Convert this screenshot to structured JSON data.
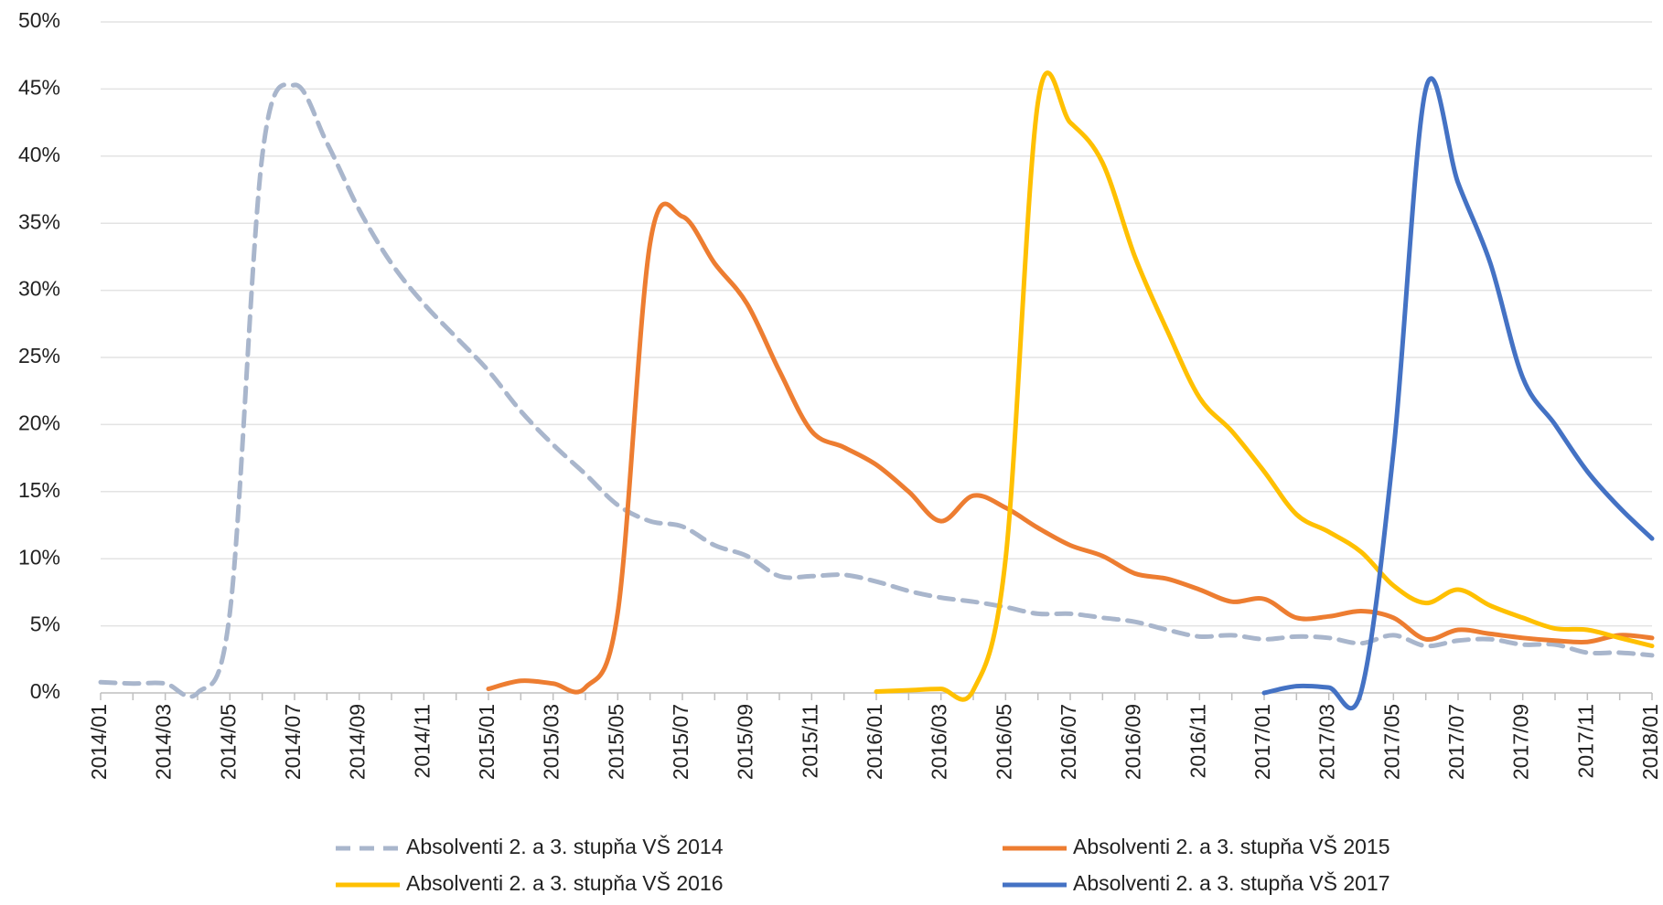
{
  "chart_data": {
    "type": "line",
    "categories": [
      "2014/01",
      null,
      "2014/03",
      null,
      "2014/05",
      null,
      "2014/07",
      null,
      "2014/09",
      null,
      "2014/11",
      null,
      "2015/01",
      null,
      "2015/03",
      null,
      "2015/05",
      null,
      "2015/07",
      null,
      "2015/09",
      null,
      "2015/11",
      null,
      "2016/01",
      null,
      "2016/03",
      null,
      "2016/05",
      null,
      "2016/07",
      null,
      "2016/09",
      null,
      "2016/11",
      null,
      "2017/01",
      null,
      "2017/03",
      null,
      "2017/05",
      null,
      "2017/07",
      null,
      "2017/09",
      null,
      "2017/11",
      null,
      "2018/01"
    ],
    "series": [
      {
        "name": "Absolventi 2. a 3. stupňa VŠ 2014",
        "color": "#a9b6cc",
        "dashed": true,
        "values": [
          0.8,
          0.7,
          0.7,
          0,
          6,
          40,
          45.3,
          41,
          36,
          32,
          29,
          26.5,
          24,
          21,
          18.5,
          16.3,
          14,
          12.8,
          12.4,
          11,
          10.2,
          8.7,
          8.7,
          8.8,
          8.3,
          7.6,
          7.1,
          6.8,
          6.4,
          5.9,
          5.9,
          5.6,
          5.3,
          4.7,
          4.2,
          4.3,
          4.0,
          4.2,
          4.1,
          3.7,
          4.3,
          3.5,
          3.9,
          4.0,
          3.6,
          3.6,
          3.0,
          3.0,
          2.8
        ]
      },
      {
        "name": "Absolventi 2. a 3. stupňa VŠ 2015",
        "color": "#ed7d31",
        "values": [
          null,
          null,
          null,
          null,
          null,
          null,
          null,
          null,
          null,
          null,
          null,
          null,
          0.3,
          0.9,
          0.7,
          0.4,
          6,
          33.5,
          35.5,
          32,
          29,
          24,
          19.5,
          18.3,
          17,
          15,
          12.8,
          14.7,
          13.8,
          12.3,
          11,
          10.2,
          8.9,
          8.5,
          7.7,
          6.8,
          7.0,
          5.6,
          5.7,
          6.1,
          5.6,
          4.0,
          4.7,
          4.4,
          4.1,
          3.9,
          3.8,
          4.3,
          4.1
        ]
      },
      {
        "name": "Absolventi 2. a 3. stupňa VŠ 2016",
        "color": "#ffc000",
        "values": [
          null,
          null,
          null,
          null,
          null,
          null,
          null,
          null,
          null,
          null,
          null,
          null,
          null,
          null,
          null,
          null,
          null,
          null,
          null,
          null,
          null,
          null,
          null,
          null,
          0.1,
          0.2,
          0.3,
          0.2,
          10,
          44,
          42.5,
          39.5,
          32.5,
          27,
          22,
          19.5,
          16.5,
          13.3,
          12,
          10.5,
          8,
          6.7,
          7.7,
          6.5,
          5.6,
          4.8,
          4.7,
          4.1,
          3.5
        ]
      },
      {
        "name": "Absolventi 2. a 3. stupňa VŠ 2017",
        "color": "#4472c4",
        "values": [
          null,
          null,
          null,
          null,
          null,
          null,
          null,
          null,
          null,
          null,
          null,
          null,
          null,
          null,
          null,
          null,
          null,
          null,
          null,
          null,
          null,
          null,
          null,
          null,
          null,
          null,
          null,
          null,
          null,
          null,
          null,
          null,
          null,
          null,
          null,
          null,
          0,
          0.5,
          0.4,
          0.1,
          18,
          45,
          38,
          32,
          23.5,
          20,
          16.5,
          13.8,
          11.5
        ]
      }
    ],
    "ylim": [
      0,
      50
    ],
    "yticks": [
      {
        "value": 0,
        "label": "0%"
      },
      {
        "value": 5,
        "label": "5%"
      },
      {
        "value": 10,
        "label": "10%"
      },
      {
        "value": 15,
        "label": "15%"
      },
      {
        "value": 20,
        "label": "20%"
      },
      {
        "value": 25,
        "label": "25%"
      },
      {
        "value": 30,
        "label": "30%"
      },
      {
        "value": 35,
        "label": "35%"
      },
      {
        "value": 40,
        "label": "40%"
      },
      {
        "value": 45,
        "label": "45%"
      },
      {
        "value": 50,
        "label": "50%"
      }
    ],
    "grid": true,
    "legend": "bottom"
  }
}
